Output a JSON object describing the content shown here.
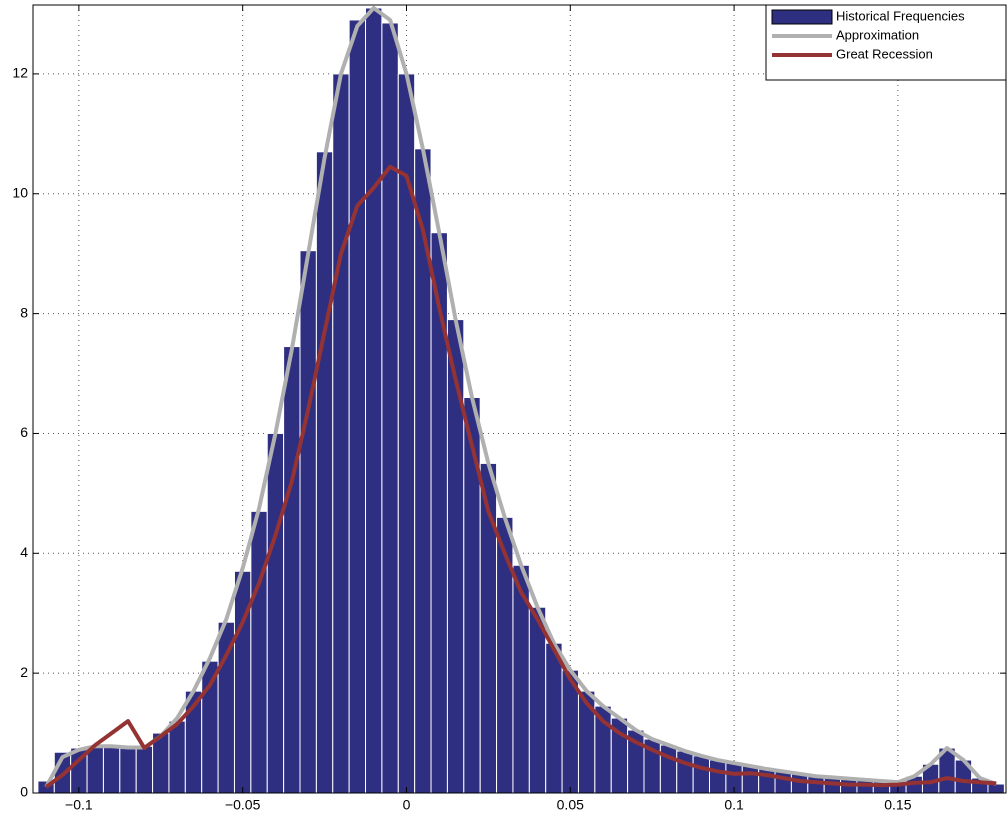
{
  "chart_data": {
    "type": "histogram",
    "name": "Historical Frequencies",
    "color": "#2e2f80",
    "bins": [
      -0.1125,
      -0.1075,
      -0.1025,
      -0.0975,
      -0.0925,
      -0.0875,
      -0.0825,
      -0.0775,
      -0.0725,
      -0.0675,
      -0.0625,
      -0.0575,
      -0.0525,
      -0.0475,
      -0.0425,
      -0.0375,
      -0.0325,
      -0.0275,
      -0.0225,
      -0.0175,
      -0.0125,
      -0.0075,
      -0.0025,
      0.0025,
      0.0075,
      0.0125,
      0.0175,
      0.0225,
      0.0275,
      0.0325,
      0.0375,
      0.0425,
      0.0475,
      0.0525,
      0.0575,
      0.0625,
      0.0675,
      0.0725,
      0.0775,
      0.0825,
      0.0875,
      0.0925,
      0.0975,
      0.1025,
      0.1075,
      0.1125,
      0.1175,
      0.1225,
      0.1275,
      0.1325,
      0.1375,
      0.1425,
      0.1475,
      0.1525,
      0.1575,
      0.1625,
      0.1675,
      0.1725,
      0.1775,
      0.1825
    ],
    "values": [
      0.2,
      0.68,
      0.75,
      0.78,
      0.77,
      0.75,
      0.78,
      1.0,
      1.2,
      1.7,
      2.2,
      2.85,
      3.7,
      4.7,
      6.0,
      7.45,
      9.05,
      10.7,
      12.0,
      12.9,
      13.1,
      12.85,
      12.0,
      10.75,
      9.35,
      7.9,
      6.6,
      5.5,
      4.6,
      3.8,
      3.1,
      2.5,
      2.05,
      1.7,
      1.45,
      1.25,
      1.05,
      0.9,
      0.8,
      0.7,
      0.62,
      0.55,
      0.5,
      0.45,
      0.4,
      0.36,
      0.32,
      0.28,
      0.26,
      0.24,
      0.22,
      0.2,
      0.18,
      0.28,
      0.48,
      0.75,
      0.55,
      0.25,
      0.15
    ],
    "x": [
      -0.11,
      -0.105,
      -0.1,
      -0.095,
      -0.09,
      -0.085,
      -0.08,
      -0.075,
      -0.07,
      -0.065,
      -0.06,
      -0.055,
      -0.05,
      -0.045,
      -0.04,
      -0.035,
      -0.03,
      -0.025,
      -0.02,
      -0.015,
      -0.01,
      -0.005,
      0,
      0.005,
      0.01,
      0.015,
      0.02,
      0.025,
      0.03,
      0.035,
      0.04,
      0.045,
      0.05,
      0.055,
      0.06,
      0.065,
      0.07,
      0.075,
      0.08,
      0.085,
      0.09,
      0.095,
      0.1,
      0.105,
      0.11,
      0.115,
      0.12,
      0.125,
      0.13,
      0.135,
      0.14,
      0.145,
      0.15,
      0.155,
      0.16,
      0.165,
      0.17,
      0.175,
      0.18
    ],
    "series": [
      {
        "name": "Approximation",
        "color": "#b0b0b0",
        "values": [
          0.1,
          0.6,
          0.72,
          0.78,
          0.78,
          0.76,
          0.76,
          0.95,
          1.25,
          1.7,
          2.25,
          2.9,
          3.75,
          4.75,
          6.0,
          7.4,
          9.0,
          10.6,
          12.0,
          12.8,
          13.1,
          12.9,
          12.0,
          10.75,
          9.35,
          7.9,
          6.6,
          5.5,
          4.6,
          3.8,
          3.1,
          2.5,
          2.05,
          1.7,
          1.45,
          1.25,
          1.05,
          0.9,
          0.8,
          0.7,
          0.62,
          0.55,
          0.5,
          0.45,
          0.4,
          0.36,
          0.32,
          0.28,
          0.26,
          0.24,
          0.22,
          0.2,
          0.18,
          0.28,
          0.48,
          0.75,
          0.55,
          0.25,
          0.15
        ]
      },
      {
        "name": "Great Recession",
        "color": "#953233",
        "values": [
          0.1,
          0.3,
          0.55,
          0.8,
          1.0,
          1.2,
          0.75,
          0.95,
          1.15,
          1.45,
          1.8,
          2.3,
          2.85,
          3.5,
          4.3,
          5.2,
          6.4,
          7.7,
          9.0,
          9.8,
          10.1,
          10.45,
          10.3,
          9.4,
          8.1,
          6.9,
          5.8,
          4.7,
          4.0,
          3.35,
          2.9,
          2.4,
          1.9,
          1.5,
          1.2,
          1.0,
          0.85,
          0.72,
          0.6,
          0.5,
          0.42,
          0.36,
          0.32,
          0.33,
          0.3,
          0.25,
          0.2,
          0.18,
          0.16,
          0.14,
          0.14,
          0.13,
          0.14,
          0.17,
          0.18,
          0.25,
          0.2,
          0.18,
          0.16
        ]
      }
    ],
    "xlim": [
      -0.114,
      0.183
    ],
    "ylim": [
      0,
      13.15
    ],
    "xticks": [
      {
        "value": -0.1,
        "label": "−0.1"
      },
      {
        "value": -0.05,
        "label": "−0.05"
      },
      0,
      0.05,
      0.1,
      0.15
    ],
    "yticks": [
      0,
      2,
      4,
      6,
      8,
      10,
      12
    ],
    "grid": true,
    "legend": "top-right"
  }
}
